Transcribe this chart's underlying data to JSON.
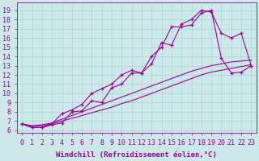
{
  "background_color": "#cce8e8",
  "grid_color": "#aad4d4",
  "line_color": "#990099",
  "xlabel": "Windchill (Refroidissement éolien,°C)",
  "ylabel_ticks": [
    6,
    7,
    8,
    9,
    10,
    11,
    12,
    13,
    14,
    15,
    16,
    17,
    18,
    19
  ],
  "xticks": [
    0,
    1,
    2,
    3,
    4,
    5,
    6,
    7,
    8,
    9,
    10,
    11,
    12,
    13,
    14,
    15,
    16,
    17,
    18,
    19,
    20,
    21,
    22,
    23
  ],
  "xlim": [
    -0.5,
    23.5
  ],
  "ylim": [
    5.7,
    19.8
  ],
  "series_plain": [
    [
      6.7,
      6.4,
      6.5,
      6.7,
      7.0,
      7.3,
      7.6,
      7.9,
      8.2,
      8.5,
      8.9,
      9.2,
      9.6,
      10.0,
      10.4,
      10.8,
      11.2,
      11.6,
      12.0,
      12.3,
      12.5,
      12.7,
      12.9,
      13.1
    ],
    [
      6.7,
      6.5,
      6.6,
      6.8,
      7.2,
      7.6,
      8.0,
      8.4,
      8.8,
      9.2,
      9.6,
      10.0,
      10.4,
      10.8,
      11.2,
      11.6,
      12.0,
      12.4,
      12.7,
      13.0,
      13.2,
      13.4,
      13.5,
      13.6
    ]
  ],
  "series_marked": [
    [
      6.7,
      6.3,
      6.3,
      6.6,
      6.8,
      8.0,
      8.1,
      9.2,
      9.0,
      10.6,
      11.0,
      12.2,
      12.2,
      14.0,
      15.0,
      17.2,
      17.2,
      17.4,
      18.7,
      19.0,
      13.8,
      12.2,
      12.3,
      13.0
    ],
    [
      6.7,
      6.3,
      6.3,
      6.7,
      7.8,
      8.2,
      8.8,
      10.0,
      10.5,
      11.0,
      12.0,
      12.5,
      12.2,
      13.2,
      15.5,
      15.2,
      17.5,
      18.0,
      19.0,
      18.8,
      16.5,
      16.0,
      16.5,
      13.0
    ]
  ],
  "marker": "+",
  "font_size": 6,
  "xlabel_font_size": 6.5
}
